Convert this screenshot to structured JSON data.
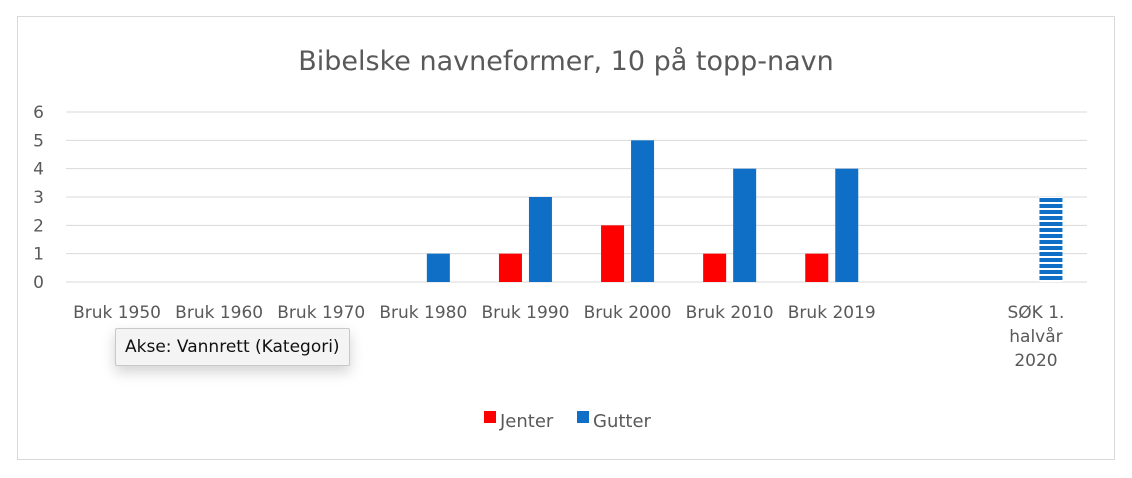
{
  "chart_data": {
    "type": "bar",
    "title": "Bibelske navneformer, 10 på topp-navn",
    "categories": [
      [
        "Bruk 1950"
      ],
      [
        "Bruk 1960"
      ],
      [
        "Bruk 1970"
      ],
      [
        "Bruk 1980"
      ],
      [
        "Bruk 1990"
      ],
      [
        "Bruk 2000"
      ],
      [
        "Bruk 2010"
      ],
      [
        "Bruk 2019"
      ],
      [],
      [
        "SØK 1.",
        "halvår",
        "2020"
      ]
    ],
    "series": [
      {
        "name": "Jenter",
        "color": "#ff0000",
        "values": [
          null,
          null,
          null,
          null,
          1,
          2,
          1,
          1,
          null,
          null
        ]
      },
      {
        "name": "Gutter",
        "color": "#0f6fc6",
        "values": [
          null,
          null,
          null,
          1,
          3,
          5,
          4,
          4,
          null,
          3
        ],
        "striped_indices": [
          9
        ]
      }
    ],
    "ylim": [
      0,
      6
    ],
    "yticks": [
      0,
      1,
      2,
      3,
      4,
      5,
      6
    ],
    "grid": true,
    "legend_position": "bottom"
  },
  "tooltip": {
    "text": "Akse: Vannrett (Kategori)"
  }
}
